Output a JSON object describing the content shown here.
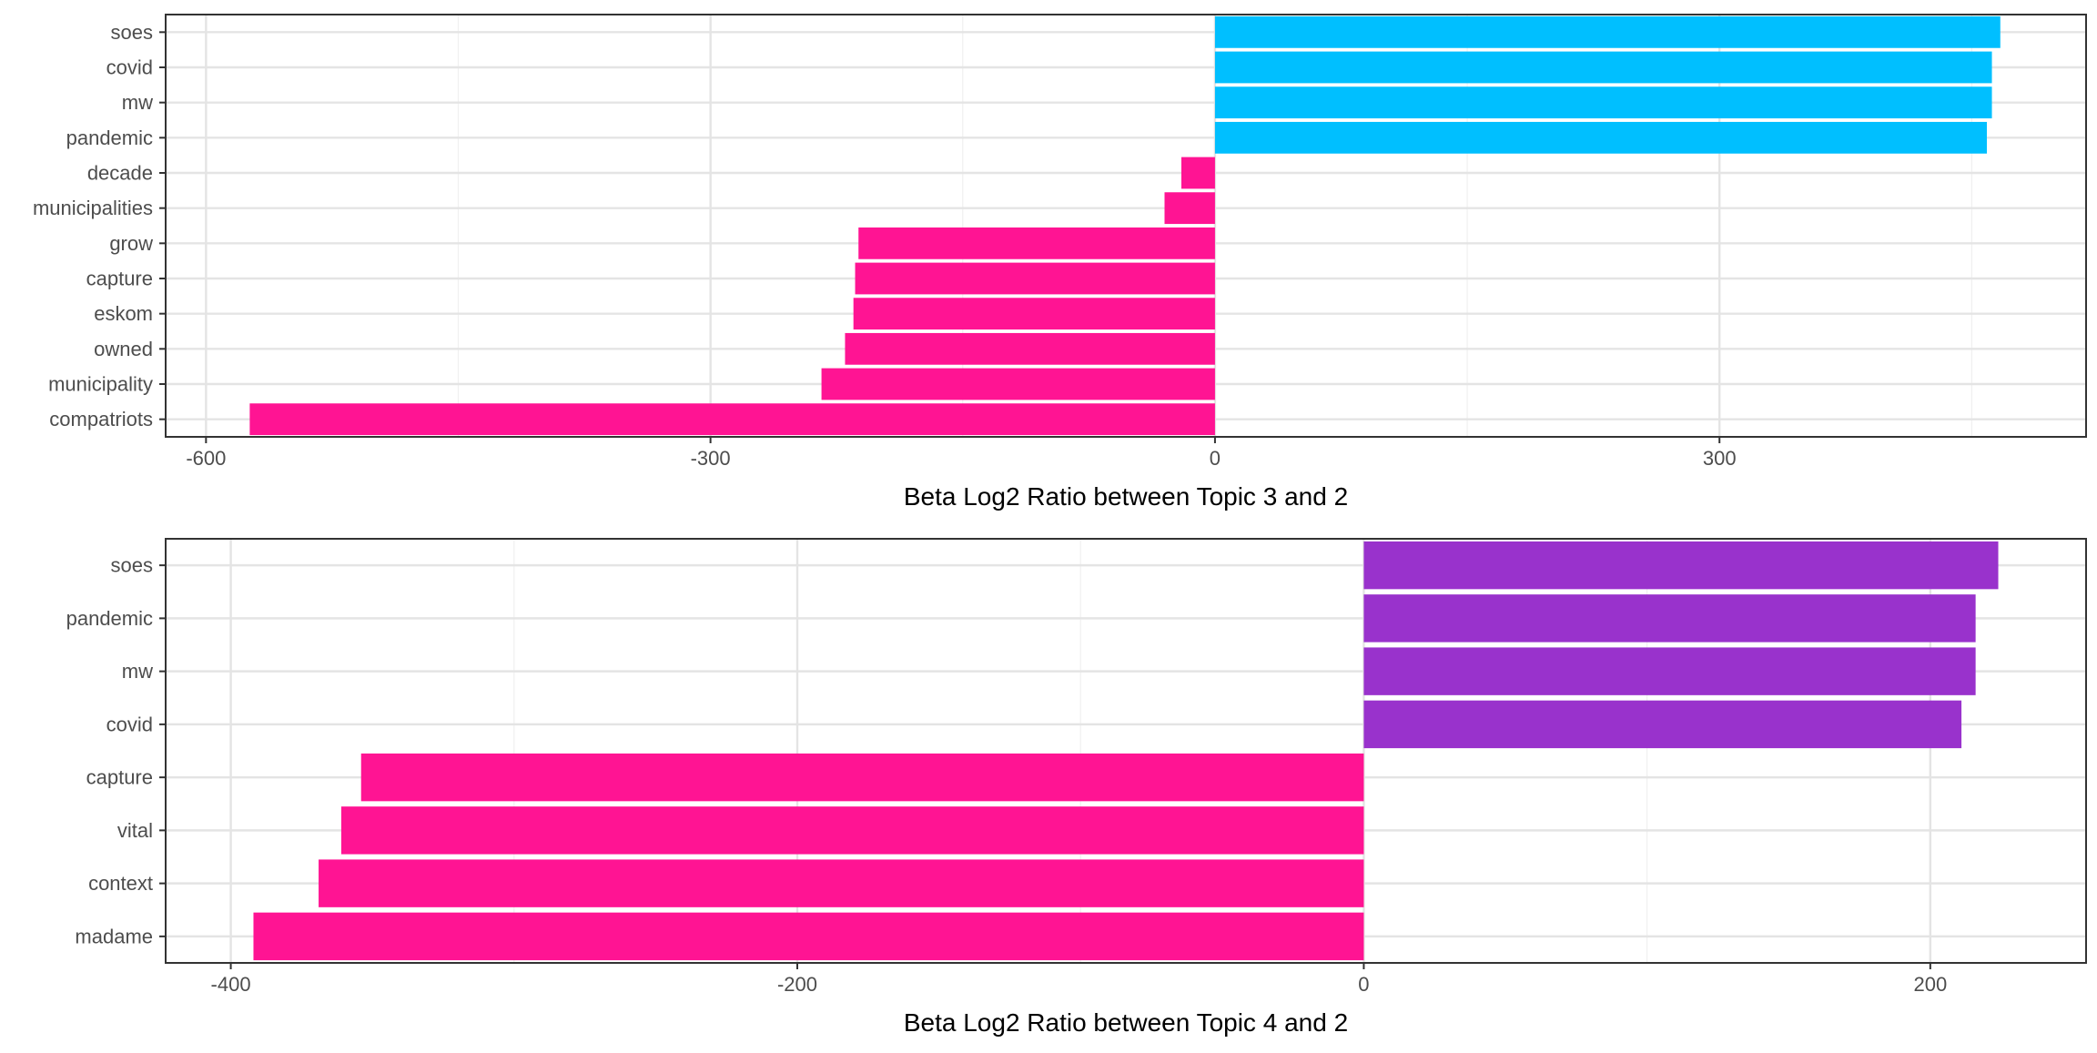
{
  "chart_data": [
    {
      "type": "bar",
      "orientation": "horizontal",
      "categories": [
        "soes",
        "covid",
        "mw",
        "pandemic",
        "decade",
        "municipalities",
        "grow",
        "capture",
        "eskom",
        "owned",
        "municipality",
        "compatriots"
      ],
      "values": [
        467,
        462,
        462,
        459,
        -20,
        -30,
        -212,
        -214,
        -215,
        -220,
        -234,
        -574
      ],
      "positive_color": "#00BFFF",
      "negative_color": "#FF1493",
      "xlabel": "Beta Log2 Ratio between Topic 3 and 2",
      "ylabel": "",
      "xlim": [
        -624,
        518
      ],
      "x_ticks": [
        -600,
        -300,
        0,
        300
      ],
      "x_tick_labels": [
        "-600",
        "-300",
        "0",
        "300"
      ],
      "grid": true
    },
    {
      "type": "bar",
      "orientation": "horizontal",
      "categories": [
        "soes",
        "pandemic",
        "mw",
        "covid",
        "capture",
        "vital",
        "context",
        "madame"
      ],
      "values": [
        224,
        216,
        216,
        211,
        -354,
        -361,
        -369,
        -392
      ],
      "positive_color": "#9932CC",
      "negative_color": "#FF1493",
      "xlabel": "Beta Log2 Ratio between Topic 4 and 2",
      "ylabel": "",
      "xlim": [
        -423,
        255
      ],
      "x_ticks": [
        -400,
        -200,
        0,
        200
      ],
      "x_tick_labels": [
        "-400",
        "-200",
        "0",
        "200"
      ],
      "grid": true
    }
  ]
}
